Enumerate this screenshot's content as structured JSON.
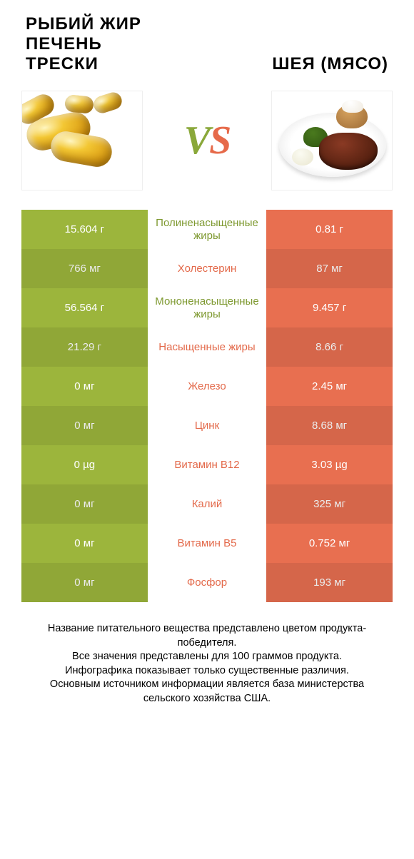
{
  "colors": {
    "left": "#9cb53c",
    "right": "#e86f50",
    "left_text": "#7e9930",
    "right_text": "#e3694a"
  },
  "titles": {
    "left": "РЫБИЙ ЖИР ПЕЧЕНЬ ТРЕСКИ",
    "right": "ШЕЯ (МЯСО)"
  },
  "vs": {
    "v": "V",
    "s": "S"
  },
  "rows": [
    {
      "left": "15.604 г",
      "label": "Полиненасыщенные жиры",
      "right": "0.81 г",
      "winner": "left"
    },
    {
      "left": "766 мг",
      "label": "Холестерин",
      "right": "87 мг",
      "winner": "right"
    },
    {
      "left": "56.564 г",
      "label": "Мононенасыщенные жиры",
      "right": "9.457 г",
      "winner": "left"
    },
    {
      "left": "21.29 г",
      "label": "Насыщенные жиры",
      "right": "8.66 г",
      "winner": "right"
    },
    {
      "left": "0 мг",
      "label": "Железо",
      "right": "2.45 мг",
      "winner": "right"
    },
    {
      "left": "0 мг",
      "label": "Цинк",
      "right": "8.68 мг",
      "winner": "right"
    },
    {
      "left": "0 µg",
      "label": "Витамин B12",
      "right": "3.03 µg",
      "winner": "right"
    },
    {
      "left": "0 мг",
      "label": "Калий",
      "right": "325 мг",
      "winner": "right"
    },
    {
      "left": "0 мг",
      "label": "Витамин B5",
      "right": "0.752 мг",
      "winner": "right"
    },
    {
      "left": "0 мг",
      "label": "Фосфор",
      "right": "193 мг",
      "winner": "right"
    }
  ],
  "footer": {
    "l1": "Название питательного вещества представлено цветом продукта-победителя.",
    "l2": "Все значения представлены для 100 граммов продукта.",
    "l3": "Инфографика показывает только существенные различия.",
    "l4": "Основным источником информации является база министерства сельского хозяйства США."
  }
}
